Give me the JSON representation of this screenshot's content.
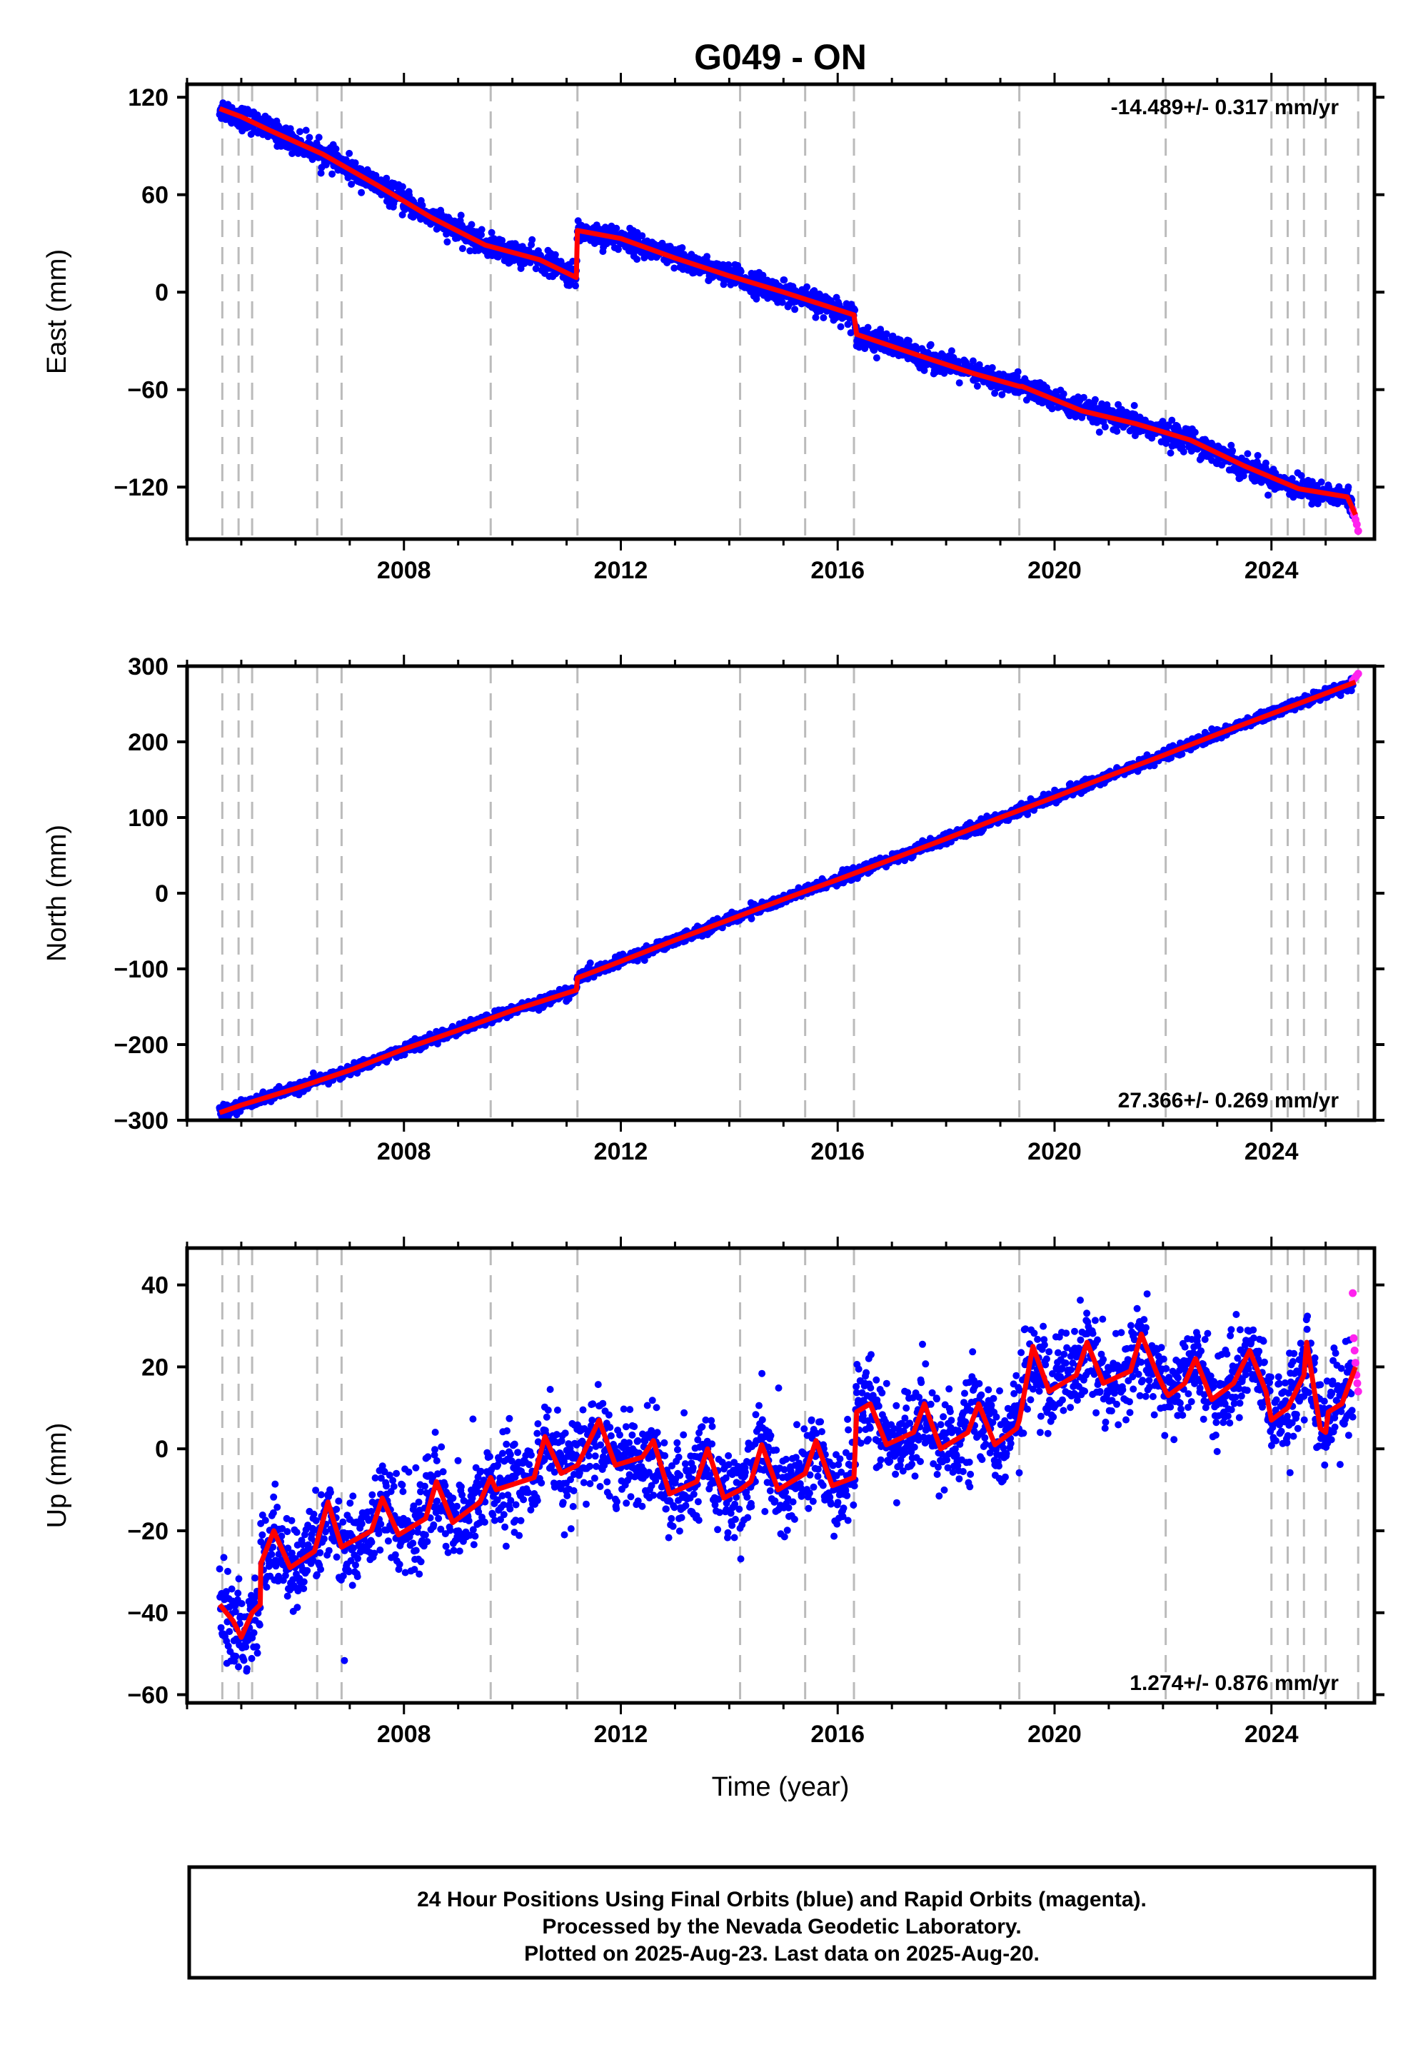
{
  "title": "G049 - ON",
  "colors": {
    "final_orbits": "#0000ff",
    "rapid_orbits": "#ff22ee",
    "model": "#ff0000",
    "event_lines": "#bbbbbb",
    "frame": "#000000"
  },
  "chart_data": [
    {
      "type": "scatter",
      "panel": "east",
      "ylabel": "East (mm)",
      "ylim": [
        -152,
        128
      ],
      "xlim": [
        2004.0,
        2025.9
      ],
      "yticks": [
        120,
        60,
        0,
        -60,
        -120
      ],
      "ytick_labels": [
        "120",
        "60",
        "0",
        "−60",
        "−120"
      ],
      "xticks": [
        2008,
        2012,
        2016,
        2020,
        2024
      ],
      "rate_text": "-14.489+/- 0.317 mm/yr",
      "rate_position": "top-right",
      "events": [
        2004.65,
        2004.95,
        2005.2,
        2006.4,
        2006.85,
        2009.6,
        2011.2,
        2014.2,
        2015.4,
        2016.3,
        2019.35,
        2022.05,
        2024.0,
        2024.3,
        2024.6,
        2025.0,
        2025.6
      ],
      "model_breakpoints": [
        [
          2004.6,
          113
        ],
        [
          2005.0,
          108
        ],
        [
          2005.5,
          100
        ],
        [
          2006.5,
          85
        ],
        [
          2007.5,
          66
        ],
        [
          2008.5,
          46
        ],
        [
          2009.5,
          29
        ],
        [
          2010.5,
          20
        ],
        [
          2011.18,
          9
        ],
        [
          2011.2,
          38
        ],
        [
          2012.0,
          33
        ],
        [
          2013.0,
          21
        ],
        [
          2014.0,
          10
        ],
        [
          2015.0,
          0
        ],
        [
          2016.3,
          -14
        ],
        [
          2016.35,
          -26
        ],
        [
          2017.5,
          -39
        ],
        [
          2018.5,
          -50
        ],
        [
          2019.35,
          -58
        ],
        [
          2019.4,
          -58
        ],
        [
          2020.5,
          -73
        ],
        [
          2021.5,
          -81
        ],
        [
          2022.5,
          -91
        ],
        [
          2023.5,
          -107
        ],
        [
          2024.5,
          -121
        ],
        [
          2025.4,
          -126
        ],
        [
          2025.55,
          -137
        ]
      ],
      "series": [
        {
          "name": "Final Orbits (blue)",
          "x_range": [
            2004.6,
            2025.5
          ],
          "approx_rate_mm_yr": -14.489,
          "scatter_mm": 3.5
        },
        {
          "name": "Rapid Orbits (magenta)",
          "x_range": [
            2025.5,
            2025.6
          ],
          "values_y": [
            -134,
            -137,
            -140,
            -143,
            -147
          ]
        }
      ]
    },
    {
      "type": "scatter",
      "panel": "north",
      "ylabel": "North (mm)",
      "ylim": [
        -300,
        300
      ],
      "xlim": [
        2004.0,
        2025.9
      ],
      "yticks": [
        300,
        200,
        100,
        0,
        -100,
        -200,
        -300
      ],
      "ytick_labels": [
        "300",
        "200",
        "100",
        "0",
        "−100",
        "−200",
        "−300"
      ],
      "xticks": [
        2008,
        2012,
        2016,
        2020,
        2024
      ],
      "rate_text": "27.366+/- 0.269 mm/yr",
      "rate_position": "bottom-right",
      "events": [
        2004.65,
        2004.95,
        2005.2,
        2006.4,
        2006.85,
        2009.6,
        2011.2,
        2014.2,
        2015.4,
        2016.3,
        2019.35,
        2022.05,
        2024.0,
        2024.3,
        2024.6,
        2025.0,
        2025.6
      ],
      "model_breakpoints": [
        [
          2004.6,
          -290
        ],
        [
          2005.0,
          -280
        ],
        [
          2006.0,
          -258
        ],
        [
          2007.0,
          -234
        ],
        [
          2008.0,
          -206
        ],
        [
          2009.0,
          -181
        ],
        [
          2010.0,
          -155
        ],
        [
          2011.18,
          -128
        ],
        [
          2011.2,
          -112
        ],
        [
          2012.0,
          -90
        ],
        [
          2013.0,
          -62
        ],
        [
          2014.0,
          -35
        ],
        [
          2015.0,
          -8
        ],
        [
          2016.0,
          18
        ],
        [
          2017.0,
          45
        ],
        [
          2018.0,
          72
        ],
        [
          2019.0,
          100
        ],
        [
          2020.0,
          127
        ],
        [
          2021.0,
          155
        ],
        [
          2022.0,
          182
        ],
        [
          2023.0,
          210
        ],
        [
          2024.0,
          237
        ],
        [
          2025.0,
          264
        ],
        [
          2025.55,
          279
        ]
      ],
      "series": [
        {
          "name": "Final Orbits (blue)",
          "x_range": [
            2004.6,
            2025.5
          ],
          "approx_rate_mm_yr": 27.366,
          "scatter_mm": 3.5
        },
        {
          "name": "Rapid Orbits (magenta)",
          "x_range": [
            2025.5,
            2025.6
          ],
          "values_y": [
            281,
            284,
            287,
            290
          ]
        }
      ]
    },
    {
      "type": "scatter",
      "panel": "up",
      "ylabel": "Up (mm)",
      "xlabel": "Time (year)",
      "ylim": [
        -62,
        49
      ],
      "xlim": [
        2004.0,
        2025.9
      ],
      "yticks": [
        40,
        20,
        0,
        -20,
        -40,
        -60
      ],
      "ytick_labels": [
        "40",
        "20",
        "0",
        "−20",
        "−40",
        "−60"
      ],
      "xticks": [
        2008,
        2012,
        2016,
        2020,
        2024
      ],
      "rate_text": "1.274+/- 0.876 mm/yr",
      "rate_position": "bottom-right",
      "events": [
        2004.65,
        2004.95,
        2005.2,
        2006.4,
        2006.85,
        2009.6,
        2011.2,
        2014.2,
        2015.4,
        2016.3,
        2019.35,
        2022.05,
        2024.0,
        2024.3,
        2024.6,
        2025.0,
        2025.6
      ],
      "model_breakpoints": [
        [
          2004.6,
          -38
        ],
        [
          2004.85,
          -42
        ],
        [
          2005.0,
          -46
        ],
        [
          2005.2,
          -40
        ],
        [
          2005.35,
          -38
        ],
        [
          2005.36,
          -28
        ],
        [
          2005.6,
          -20
        ],
        [
          2005.9,
          -29
        ],
        [
          2006.35,
          -25
        ],
        [
          2006.6,
          -13
        ],
        [
          2006.85,
          -24
        ],
        [
          2007.4,
          -20
        ],
        [
          2007.6,
          -12
        ],
        [
          2007.9,
          -21
        ],
        [
          2008.4,
          -17
        ],
        [
          2008.6,
          -8
        ],
        [
          2008.9,
          -18
        ],
        [
          2009.4,
          -13
        ],
        [
          2009.6,
          -7
        ],
        [
          2009.7,
          -10
        ],
        [
          2010.4,
          -7
        ],
        [
          2010.6,
          3
        ],
        [
          2010.9,
          -6
        ],
        [
          2011.2,
          -4
        ],
        [
          2011.35,
          0
        ],
        [
          2011.6,
          7
        ],
        [
          2011.9,
          -4
        ],
        [
          2012.4,
          -2
        ],
        [
          2012.6,
          2
        ],
        [
          2012.9,
          -11
        ],
        [
          2013.4,
          -8
        ],
        [
          2013.6,
          0
        ],
        [
          2013.9,
          -12
        ],
        [
          2014.2,
          -10
        ],
        [
          2014.4,
          -8
        ],
        [
          2014.6,
          1
        ],
        [
          2014.9,
          -10
        ],
        [
          2015.4,
          -6
        ],
        [
          2015.6,
          2
        ],
        [
          2015.9,
          -9
        ],
        [
          2016.3,
          -7
        ],
        [
          2016.35,
          9
        ],
        [
          2016.6,
          11
        ],
        [
          2016.9,
          1
        ],
        [
          2017.4,
          4
        ],
        [
          2017.6,
          11
        ],
        [
          2017.9,
          0
        ],
        [
          2018.4,
          4
        ],
        [
          2018.6,
          11
        ],
        [
          2018.9,
          1
        ],
        [
          2019.3,
          5
        ],
        [
          2019.35,
          7
        ],
        [
          2019.6,
          25
        ],
        [
          2019.9,
          14
        ],
        [
          2020.4,
          18
        ],
        [
          2020.6,
          26
        ],
        [
          2020.9,
          16
        ],
        [
          2021.4,
          19
        ],
        [
          2021.6,
          28
        ],
        [
          2021.9,
          18
        ],
        [
          2022.05,
          14
        ],
        [
          2022.1,
          13
        ],
        [
          2022.4,
          16
        ],
        [
          2022.6,
          22
        ],
        [
          2022.9,
          12
        ],
        [
          2023.3,
          16
        ],
        [
          2023.6,
          24
        ],
        [
          2023.9,
          14
        ],
        [
          2024.0,
          7
        ],
        [
          2024.3,
          10
        ],
        [
          2024.6,
          18
        ],
        [
          2024.65,
          26
        ],
        [
          2024.9,
          5
        ],
        [
          2025.0,
          4
        ],
        [
          2025.05,
          9
        ],
        [
          2025.3,
          11
        ],
        [
          2025.55,
          20
        ]
      ],
      "series": [
        {
          "name": "Final Orbits (blue)",
          "x_range": [
            2004.6,
            2025.5
          ],
          "approx_rate_mm_yr": 1.274,
          "scatter_mm": 5.5
        },
        {
          "name": "Rapid Orbits (magenta)",
          "x_range": [
            2025.5,
            2025.6
          ],
          "values_y": [
            38,
            27,
            24,
            21,
            18,
            16,
            14
          ]
        }
      ]
    }
  ],
  "footer": {
    "line1": "24 Hour Positions Using Final Orbits (blue) and Rapid Orbits (magenta).",
    "line2": "Processed by the Nevada Geodetic Laboratory.",
    "line3": "Plotted on 2025-Aug-23. Last data on 2025-Aug-20."
  }
}
